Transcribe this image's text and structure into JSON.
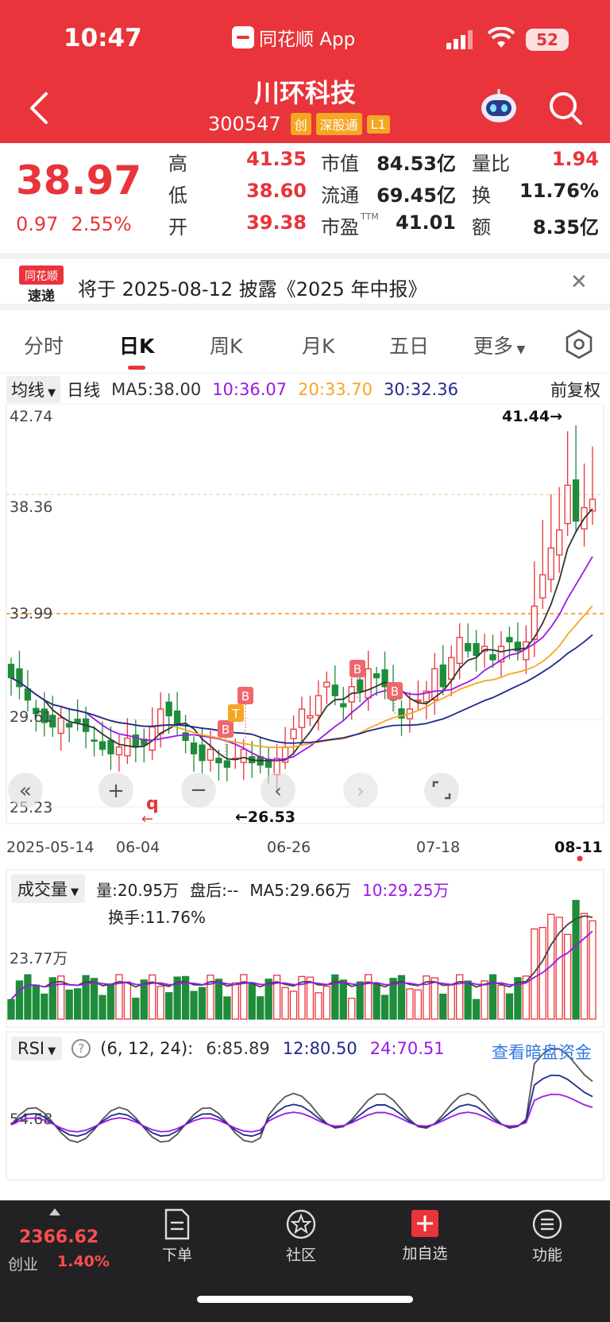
{
  "status": {
    "time": "10:47",
    "app": "同花顺 App",
    "battery": "52"
  },
  "stock": {
    "name": "川环科技",
    "code": "300547",
    "tags": [
      "创",
      "深股通",
      "L1"
    ],
    "price": "38.97",
    "change": "0.97",
    "change_pct": "2.55%",
    "high_label": "高",
    "high": "41.35",
    "low_label": "低",
    "low": "38.60",
    "open_label": "开",
    "open": "39.38",
    "mcap_label": "市值",
    "mcap": "84.53亿",
    "float_label": "流通",
    "float": "69.45亿",
    "pe_label": "市盈",
    "pe_sup": "TTM",
    "pe": "41.01",
    "vr_label": "量比",
    "vr": "1.94",
    "turn_label": "换",
    "turn": "11.76%",
    "amt_label": "额",
    "amt": "8.35亿"
  },
  "banner": {
    "logo_top": "同花顺",
    "logo_bottom": "速递",
    "text": "将于 2025-08-12 披露《2025 年中报》"
  },
  "tabs": [
    "分时",
    "日K",
    "周K",
    "月K",
    "五日",
    "更多"
  ],
  "active_tab": "日K",
  "ma": {
    "select": "均线",
    "period": "日线",
    "ma5": "MA5:38.00",
    "ma10": "10:36.07",
    "ma20": "20:33.70",
    "ma30": "30:32.36",
    "adjust": "前复权"
  },
  "kline": {
    "y_ticks": [
      "42.74",
      "38.36",
      "33.99",
      "29.61",
      "25.23"
    ],
    "x_ticks": [
      "2025-05-14",
      "06-04",
      "06-26",
      "07-18",
      "08-11"
    ],
    "max_label": "41.44→",
    "min_label": "←26.53",
    "markers": [
      "B",
      "T",
      "B",
      "B",
      "B"
    ],
    "q_marker": "q"
  },
  "volume": {
    "select": "成交量",
    "vol": "量:20.95万",
    "after": "盘后:--",
    "ma5": "MA5:29.66万",
    "ma10": "10:29.25万",
    "turnover": "换手:11.76%",
    "y_tick": "23.77万"
  },
  "rsi": {
    "select": "RSI",
    "help": "?",
    "params": "(6, 12, 24):",
    "r6": "6:85.89",
    "r12": "12:80.50",
    "r24": "24:70.51",
    "link": "查看暗盘资金",
    "y_tick": "54.68"
  },
  "bottom": {
    "index_value": "2366.62",
    "index_name": "创业",
    "index_change": "1.40%",
    "nav": [
      "下单",
      "社区",
      "加自选",
      "功能"
    ]
  },
  "colors": {
    "up": "#e8343a",
    "down": "#1e8c3a",
    "ma5": "#333333",
    "ma10": "#9b19e6",
    "ma20": "#f5a623",
    "ma30": "#1f2a8c"
  }
}
